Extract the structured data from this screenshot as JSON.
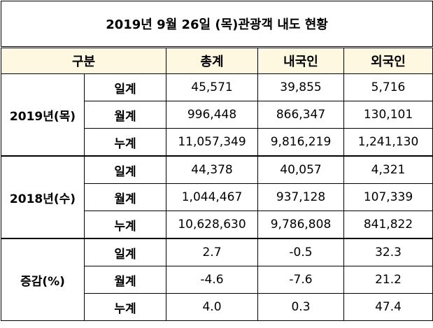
{
  "title": "2019년 9월 26일 (목)관광객 내도 현황",
  "header": [
    "구분",
    "총계",
    "내국인",
    "외국인"
  ],
  "groups": [
    {
      "label": "2019년(목)",
      "rows": [
        {
          "label": "일계",
          "values": [
            "45,571",
            "39,855",
            "5,716"
          ]
        },
        {
          "label": "월계",
          "values": [
            "996,448",
            "866,347",
            "130,101"
          ]
        },
        {
          "label": "누계",
          "values": [
            "11,057,349",
            "9,816,219",
            "1,241,130"
          ]
        }
      ]
    },
    {
      "label": "2018년(수)",
      "rows": [
        {
          "label": "일계",
          "values": [
            "44,378",
            "40,057",
            "4,321"
          ]
        },
        {
          "label": "월계",
          "values": [
            "1,044,467",
            "937,128",
            "107,339"
          ]
        },
        {
          "label": "누계",
          "values": [
            "10,628,630",
            "9,786,808",
            "841,822"
          ]
        }
      ]
    },
    {
      "label": "증감(%)",
      "rows": [
        {
          "label": "일계",
          "values": [
            "2.7",
            "-0.5",
            "32.3"
          ]
        },
        {
          "label": "월계",
          "values": [
            "-4.6",
            "-7.6",
            "21.2"
          ]
        },
        {
          "label": "누계",
          "values": [
            "4.0",
            "0.3",
            "47.4"
          ]
        }
      ]
    }
  ]
}
